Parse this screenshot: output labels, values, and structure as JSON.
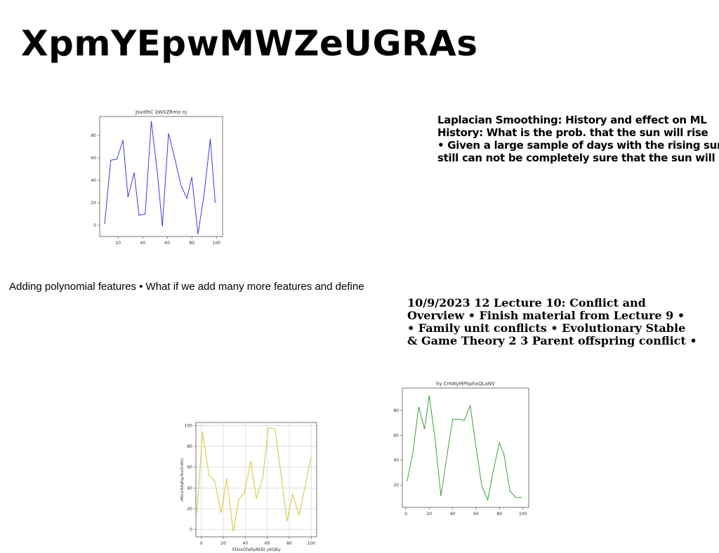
{
  "page": {
    "title": "XpmYEpwMWZeUGRAs",
    "text_block_1": [
      "Laplacian Smoothing: History and effect on ML",
      "History: What is the prob. that the sun will rise",
      "• Given a large sample of days with the rising sun,",
      "still can not be completely sure that the sun will"
    ],
    "caption": "Adding polynomial features • What if we add many more features and define",
    "text_block_2": [
      "10/9/2023 12 Lecture 10: Conflict and",
      "Overview • Finish material from Lecture 9 •",
      "• Family unit conflicts • Evolutionary Stable",
      "& Game Theory 2 3 Parent offspring conflict •"
    ]
  },
  "chart_data": [
    {
      "type": "line",
      "title": "JsvdlhC IjWXZRmo nj",
      "xlabel": "",
      "ylabel": "",
      "color": "#3b3bdc",
      "grid": false,
      "xlim": [
        5,
        105
      ],
      "ylim": [
        -10,
        97
      ],
      "xticks": [
        20,
        40,
        60,
        80,
        100
      ],
      "yticks": [
        0,
        20,
        40,
        60,
        80
      ],
      "series": [
        {
          "x": [
            9,
            14,
            19,
            24,
            28,
            33,
            37,
            42,
            47,
            52,
            56,
            61,
            66,
            71,
            76,
            80,
            85,
            90,
            95,
            99
          ],
          "y": [
            1,
            58,
            59,
            76,
            25,
            47,
            9,
            10,
            93,
            46,
            -1,
            82,
            60,
            36,
            24,
            43,
            -8,
            28,
            77,
            20
          ]
        }
      ]
    },
    {
      "type": "line",
      "title": "",
      "xlabel": "XDsxOfaRpNHD yKQBy",
      "ylabel": "zMkUvNAqPqyTesiZcWVc",
      "color": "#d4c832",
      "grid": true,
      "xlim": [
        -5,
        105
      ],
      "ylim": [
        -7,
        103
      ],
      "xticks": [
        0,
        20,
        40,
        60,
        80,
        100
      ],
      "yticks": [
        0,
        20,
        40,
        60,
        80,
        100
      ],
      "series": [
        {
          "x": [
            -4,
            1,
            7,
            12,
            18,
            23,
            29,
            34,
            39,
            45,
            50,
            56,
            61,
            67,
            72,
            78,
            83,
            89,
            94,
            100
          ],
          "y": [
            16,
            94,
            52,
            47,
            16,
            49,
            -2,
            29,
            35,
            66,
            30,
            50,
            98,
            97,
            57,
            8,
            34,
            14,
            39,
            70
          ]
        }
      ]
    },
    {
      "type": "line",
      "title": "hy CmiKyMPkphxQLaNV",
      "xlabel": "",
      "ylabel": "",
      "color": "#3c9e3c",
      "grid": false,
      "xlim": [
        -3,
        105
      ],
      "ylim": [
        2,
        98
      ],
      "xticks": [
        0,
        20,
        40,
        60,
        80,
        100
      ],
      "yticks": [
        20,
        40,
        60,
        80
      ],
      "series": [
        {
          "x": [
            1,
            6,
            11,
            16,
            20,
            25,
            30,
            35,
            40,
            45,
            50,
            55,
            60,
            65,
            70,
            75,
            80,
            84,
            89,
            94,
            99
          ],
          "y": [
            23,
            46,
            83,
            65,
            92,
            57,
            11,
            43,
            73,
            73,
            72,
            84,
            50,
            19,
            8,
            33,
            54,
            44,
            15,
            10,
            10
          ]
        }
      ]
    }
  ]
}
